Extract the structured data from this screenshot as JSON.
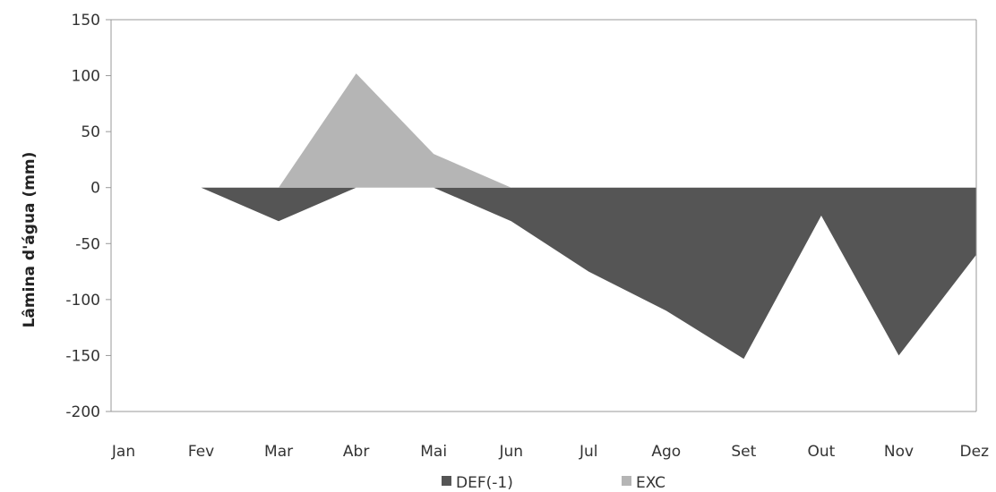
{
  "chart_data": {
    "type": "area",
    "title": "",
    "xlabel": "",
    "ylabel": "Lâmina d'água (mm)",
    "categories": [
      "Jan",
      "Fev",
      "Mar",
      "Abr",
      "Mai",
      "Jun",
      "Jul",
      "Ago",
      "Set",
      "Out",
      "Nov",
      "Dez"
    ],
    "ylim": [
      -200,
      150
    ],
    "yticks": [
      150,
      100,
      50,
      0,
      -50,
      -100,
      -150,
      -200
    ],
    "grid": false,
    "legend_position": "bottom",
    "series": [
      {
        "name": "DEF(-1)",
        "color": "#555555",
        "values": [
          0,
          0,
          -30,
          0,
          0,
          -30,
          -75,
          -110,
          -153,
          -25,
          -150,
          -60
        ]
      },
      {
        "name": "EXC",
        "color": "#b5b5b5",
        "values": [
          0,
          0,
          0,
          102,
          30,
          0,
          0,
          0,
          0,
          0,
          0,
          0
        ]
      }
    ]
  }
}
